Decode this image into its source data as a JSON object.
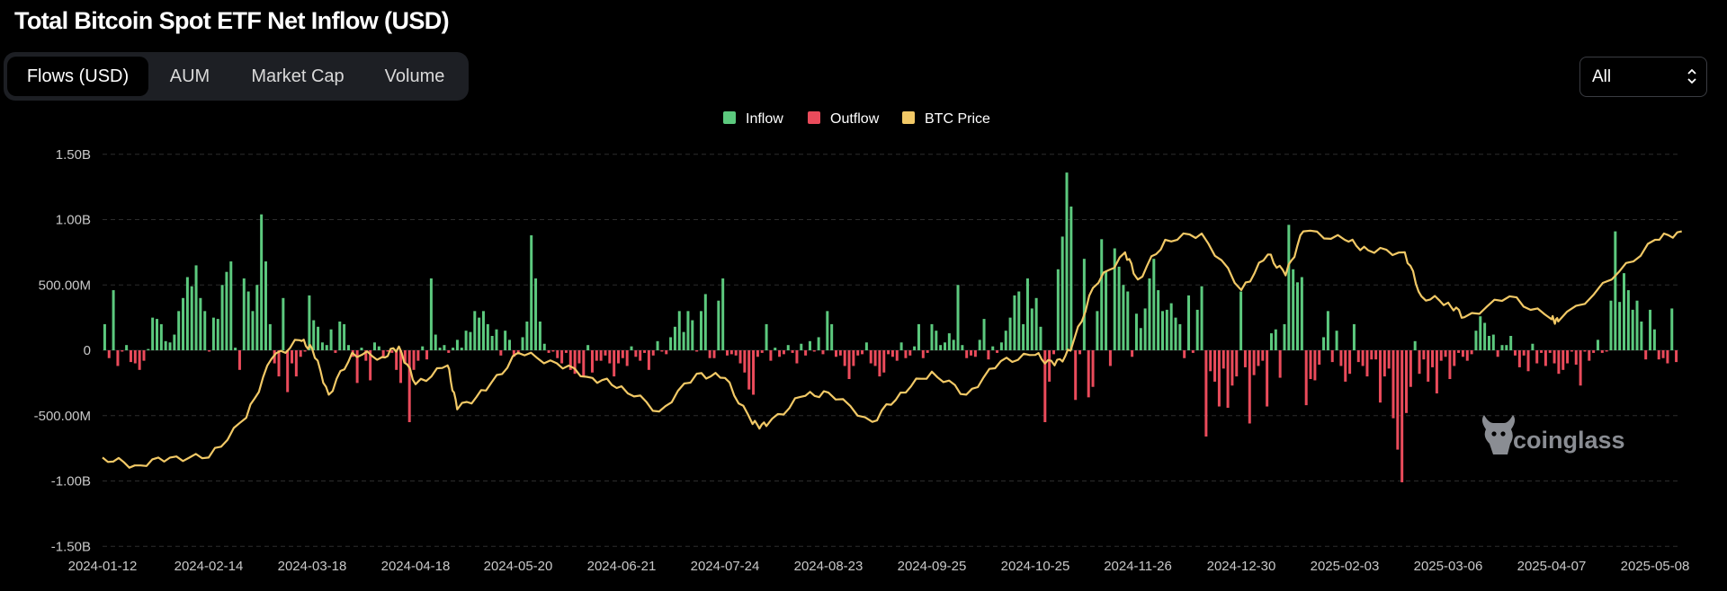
{
  "page": {
    "title": "Total Bitcoin Spot ETF Net Inflow (USD)"
  },
  "tabs": [
    {
      "label": "Flows (USD)",
      "active": true
    },
    {
      "label": "AUM",
      "active": false
    },
    {
      "label": "Market Cap",
      "active": false
    },
    {
      "label": "Volume",
      "active": false
    }
  ],
  "range_select": {
    "value": "All",
    "icon": "chevron-up-down-icon"
  },
  "watermark": {
    "text": "coinglass",
    "icon": "coinglass-logo-icon"
  },
  "colors": {
    "inflow": "#5cc97e",
    "outflow": "#ea4b5b",
    "btc_price": "#f2c966",
    "grid": "#2c2c2c"
  },
  "chart_data": {
    "type": "bar",
    "title": "Total Bitcoin Spot ETF Net Inflow (USD)",
    "legend": [
      {
        "name": "Inflow",
        "color": "#5cc97e"
      },
      {
        "name": "Outflow",
        "color": "#ea4b5b"
      },
      {
        "name": "BTC Price",
        "color": "#f2c966"
      }
    ],
    "legend_position": "top-center",
    "grid": true,
    "y_ticks": [
      "1.50B",
      "1.00B",
      "500.00M",
      "0",
      "-500.00M",
      "-1.00B",
      "-1.50B"
    ],
    "y_tick_values": [
      1500,
      1000,
      500,
      0,
      -500,
      -1000,
      -1500
    ],
    "y_unit": "millions USD",
    "ylim": [
      -1500,
      1500
    ],
    "x_ticks": [
      "2024-01-12",
      "2024-02-14",
      "2024-03-18",
      "2024-04-18",
      "2024-05-20",
      "2024-06-21",
      "2024-07-24",
      "2024-08-23",
      "2024-09-25",
      "2024-10-25",
      "2024-11-26",
      "2024-12-30",
      "2025-02-03",
      "2025-03-06",
      "2025-04-07",
      "2025-05-08"
    ],
    "series": [
      {
        "name": "Net Flow",
        "values": [
          200,
          -60,
          460,
          -120,
          -10,
          40,
          -90,
          -100,
          -150,
          -80,
          10,
          250,
          240,
          200,
          70,
          60,
          120,
          300,
          400,
          560,
          490,
          650,
          400,
          300,
          -10,
          250,
          240,
          500,
          600,
          680,
          20,
          -150,
          550,
          450,
          300,
          500,
          1040,
          680,
          200,
          -100,
          -200,
          400,
          -320,
          -100,
          -200,
          -50,
          -10,
          420,
          230,
          180,
          60,
          40,
          160,
          -20,
          220,
          200,
          40,
          -50,
          -250,
          20,
          -80,
          -230,
          60,
          30,
          -60,
          -10,
          -20,
          -150,
          -250,
          -100,
          -550,
          -150,
          -80,
          30,
          -70,
          550,
          120,
          20,
          40,
          -20,
          20,
          80,
          20,
          150,
          140,
          300,
          250,
          300,
          200,
          110,
          160,
          -40,
          150,
          80,
          -50,
          -30,
          100,
          220,
          880,
          550,
          220,
          50,
          -20,
          -10,
          -60,
          -100,
          -20,
          -150,
          -180,
          -100,
          -200,
          40,
          -170,
          -80,
          -80,
          -40,
          -100,
          -200,
          -100,
          -60,
          -120,
          30,
          -50,
          -80,
          -20,
          -150,
          -40,
          70,
          -10,
          -30,
          100,
          180,
          300,
          140,
          300,
          230,
          -10,
          300,
          430,
          -60,
          -60,
          380,
          550,
          -40,
          -30,
          -40,
          -100,
          -170,
          -300,
          -340,
          -50,
          -20,
          200,
          -80,
          20,
          -50,
          -30,
          40,
          -20,
          -100,
          50,
          -40,
          70,
          -10,
          100,
          -30,
          300,
          200,
          -50,
          -40,
          -120,
          -220,
          -120,
          -40,
          -30,
          60,
          -100,
          -120,
          -200,
          -170,
          -30,
          -50,
          -80,
          60,
          -60,
          -40,
          30,
          200,
          -60,
          -20,
          200,
          150,
          40,
          60,
          130,
          80,
          500,
          40,
          -60,
          -40,
          -50,
          80,
          240,
          -70,
          30,
          -20,
          60,
          150,
          250,
          420,
          450,
          200,
          550,
          320,
          400,
          180,
          -550,
          -240,
          -30,
          620,
          870,
          1360,
          1100,
          -380,
          -30,
          700,
          -360,
          -280,
          300,
          850,
          600,
          -120,
          780,
          640,
          500,
          450,
          -50,
          280,
          170,
          320,
          550,
          700,
          460,
          300,
          310,
          360,
          250,
          200,
          -60,
          420,
          -20,
          310,
          490,
          -660,
          -160,
          -240,
          -430,
          -140,
          -440,
          -270,
          -200,
          450,
          -130,
          -560,
          -190,
          -120,
          -80,
          -430,
          130,
          160,
          -210,
          200,
          960,
          620,
          520,
          560,
          -420,
          -220,
          -230,
          -110,
          100,
          300,
          -90,
          150,
          -120,
          -240,
          -180,
          200,
          -90,
          -120,
          -200,
          -70,
          -70,
          -400,
          -200,
          -140,
          -520,
          -760,
          -1010,
          -480,
          -280,
          70,
          -180,
          -70,
          -240,
          -130,
          -330,
          -80,
          -50,
          -220,
          -120,
          -20,
          -50,
          -80,
          -30,
          150,
          260,
          210,
          110,
          120,
          -50,
          40,
          40,
          110,
          -40,
          -130,
          -40,
          -160,
          50,
          -100,
          -20,
          -120,
          -20,
          -100,
          -180,
          -150,
          -100,
          -10,
          -110,
          -270,
          -10,
          -80,
          -20,
          80,
          -20,
          -10,
          380,
          910,
          370,
          590,
          460,
          310,
          380,
          220,
          -70,
          310,
          160,
          -70,
          -60,
          -100,
          320,
          -90
        ],
        "values_note_unit": "millions USD"
      },
      {
        "name": "BTC Price",
        "axis": "hidden",
        "points": [
          {
            "x": "2024-01-12",
            "y": 0.55
          },
          {
            "x": "2024-01-22",
            "y": 0.36
          },
          {
            "x": "2024-02-02",
            "y": 0.55
          },
          {
            "x": "2024-02-14",
            "y": 0.55
          },
          {
            "x": "2024-02-26",
            "y": 1.5
          },
          {
            "x": "2024-03-05",
            "y": 2.9
          },
          {
            "x": "2024-03-14",
            "y": 3.35
          },
          {
            "x": "2024-03-18",
            "y": 3.15
          },
          {
            "x": "2024-03-23",
            "y": 2.05
          },
          {
            "x": "2024-03-30",
            "y": 3.05
          },
          {
            "x": "2024-04-08",
            "y": 2.95
          },
          {
            "x": "2024-04-13",
            "y": 3.2
          },
          {
            "x": "2024-04-18",
            "y": 2.3
          },
          {
            "x": "2024-04-28",
            "y": 2.75
          },
          {
            "x": "2024-05-01",
            "y": 1.7
          },
          {
            "x": "2024-05-10",
            "y": 2.15
          },
          {
            "x": "2024-05-20",
            "y": 3.05
          },
          {
            "x": "2024-06-01",
            "y": 2.8
          },
          {
            "x": "2024-06-12",
            "y": 2.45
          },
          {
            "x": "2024-06-21",
            "y": 2.25
          },
          {
            "x": "2024-07-03",
            "y": 1.65
          },
          {
            "x": "2024-07-15",
            "y": 2.55
          },
          {
            "x": "2024-07-24",
            "y": 2.45
          },
          {
            "x": "2024-08-01",
            "y": 1.35
          },
          {
            "x": "2024-08-05",
            "y": 1.3
          },
          {
            "x": "2024-08-15",
            "y": 2.0
          },
          {
            "x": "2024-08-23",
            "y": 2.1
          },
          {
            "x": "2024-09-06",
            "y": 1.4
          },
          {
            "x": "2024-09-15",
            "y": 2.1
          },
          {
            "x": "2024-09-25",
            "y": 2.6
          },
          {
            "x": "2024-10-05",
            "y": 2.05
          },
          {
            "x": "2024-10-15",
            "y": 2.85
          },
          {
            "x": "2024-10-25",
            "y": 3.0
          },
          {
            "x": "2024-10-31",
            "y": 2.75
          },
          {
            "x": "2024-11-05",
            "y": 3.1
          },
          {
            "x": "2024-11-12",
            "y": 4.6
          },
          {
            "x": "2024-11-22",
            "y": 5.45
          },
          {
            "x": "2024-11-26",
            "y": 4.8
          },
          {
            "x": "2024-12-05",
            "y": 5.75
          },
          {
            "x": "2024-12-17",
            "y": 5.9
          },
          {
            "x": "2024-12-30",
            "y": 4.55
          },
          {
            "x": "2025-01-08",
            "y": 5.4
          },
          {
            "x": "2025-01-14",
            "y": 4.9
          },
          {
            "x": "2025-01-20",
            "y": 5.95
          },
          {
            "x": "2025-02-03",
            "y": 5.75
          },
          {
            "x": "2025-02-10",
            "y": 5.5
          },
          {
            "x": "2025-02-21",
            "y": 5.45
          },
          {
            "x": "2025-02-26",
            "y": 4.4
          },
          {
            "x": "2025-03-06",
            "y": 4.25
          },
          {
            "x": "2025-03-11",
            "y": 3.9
          },
          {
            "x": "2025-03-25",
            "y": 4.4
          },
          {
            "x": "2025-04-07",
            "y": 3.85
          },
          {
            "x": "2025-04-09",
            "y": 3.8
          },
          {
            "x": "2025-04-25",
            "y": 4.8
          },
          {
            "x": "2025-05-08",
            "y": 5.75
          },
          {
            "x": "2025-05-16",
            "y": 5.95
          }
        ]
      }
    ]
  }
}
